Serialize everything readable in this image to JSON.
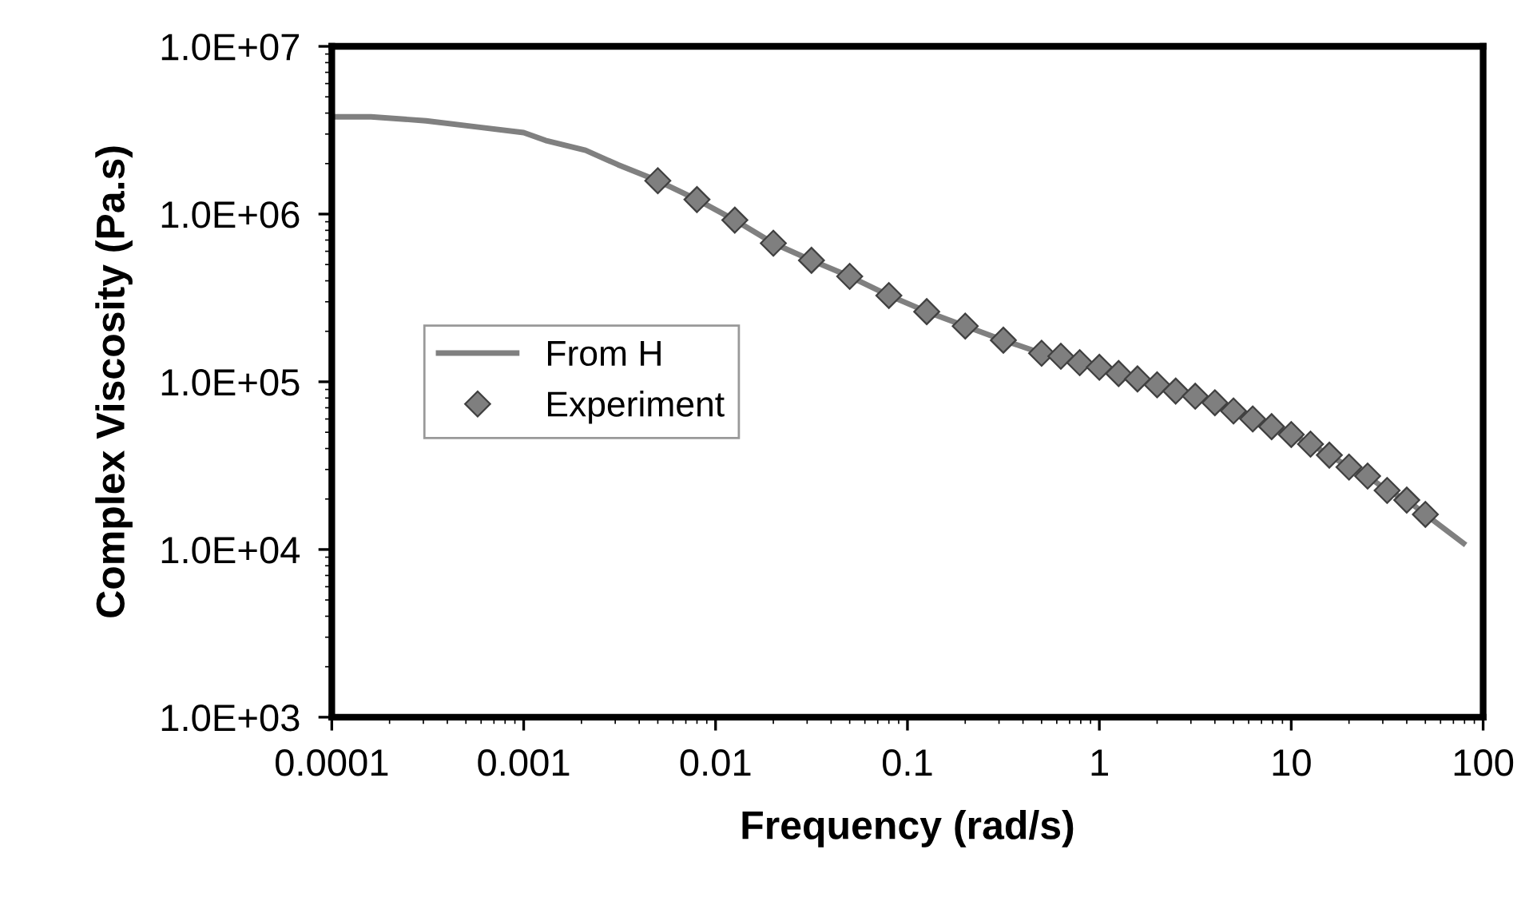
{
  "chart_data": {
    "type": "line",
    "xlabel": "Frequency (rad/s)",
    "ylabel": "Complex Viscosity (Pa.s)",
    "log": "xy",
    "grid": false,
    "legend": "left",
    "xlim": [
      0.0001,
      100
    ],
    "xticks": [
      0.0001,
      0.001,
      0.01,
      0.1,
      1,
      10,
      100
    ],
    "ylim": [
      1000,
      10000000
    ],
    "yticks": [
      {
        "value": 1000,
        "label": "1.0E+03"
      },
      {
        "value": 10000,
        "label": "1.0E+04"
      },
      {
        "value": 100000,
        "label": "1.0E+05"
      },
      {
        "value": 1000000,
        "label": "1.0E+06"
      },
      {
        "value": 10000000,
        "label": "1.0E+07"
      }
    ],
    "series": [
      {
        "name": "From H",
        "color": "#808080",
        "marker": "none",
        "line_style": "solid",
        "x": [
          0.0001,
          0.00016,
          0.00031,
          0.00058,
          0.001,
          0.0013,
          0.0021,
          0.0031,
          0.005,
          0.008,
          0.0126,
          0.02,
          0.0316,
          0.05,
          0.08,
          0.126,
          0.2,
          0.316,
          0.5,
          0.63,
          0.79,
          1,
          1.26,
          1.58,
          2,
          2.5,
          3.16,
          4,
          5,
          6.3,
          7.9,
          10,
          12.6,
          15.8,
          20,
          25,
          31.6,
          40,
          50,
          79
        ],
        "values": [
          3800000,
          3800000,
          3600000,
          3300000,
          3060000,
          2750000,
          2400000,
          1970000,
          1580000,
          1220000,
          920000,
          670000,
          530000,
          425000,
          327000,
          262000,
          215000,
          177000,
          148000,
          142000,
          130000,
          122000,
          112000,
          104000,
          96000,
          88000,
          82000,
          75000,
          67000,
          60000,
          54000,
          48500,
          42500,
          36500,
          31000,
          27400,
          22500,
          19700,
          16200,
          10900
        ]
      },
      {
        "name": "Experiment",
        "type": "scatter",
        "color": "#7f7f7f",
        "marker": "diamond",
        "x": [
          0.005,
          0.008,
          0.0126,
          0.02,
          0.0316,
          0.05,
          0.08,
          0.126,
          0.2,
          0.316,
          0.5,
          0.63,
          0.79,
          1,
          1.26,
          1.58,
          2,
          2.5,
          3.16,
          4,
          5,
          6.3,
          7.9,
          10,
          12.6,
          15.8,
          20,
          25,
          31.6,
          40,
          50
        ],
        "values": [
          1580000,
          1220000,
          920000,
          670000,
          530000,
          425000,
          327000,
          262000,
          215000,
          177000,
          148000,
          142000,
          130000,
          122000,
          112000,
          104000,
          96000,
          88000,
          82000,
          75000,
          67000,
          60000,
          54000,
          48500,
          42500,
          36500,
          31000,
          27400,
          22500,
          19700,
          16200
        ]
      }
    ]
  }
}
